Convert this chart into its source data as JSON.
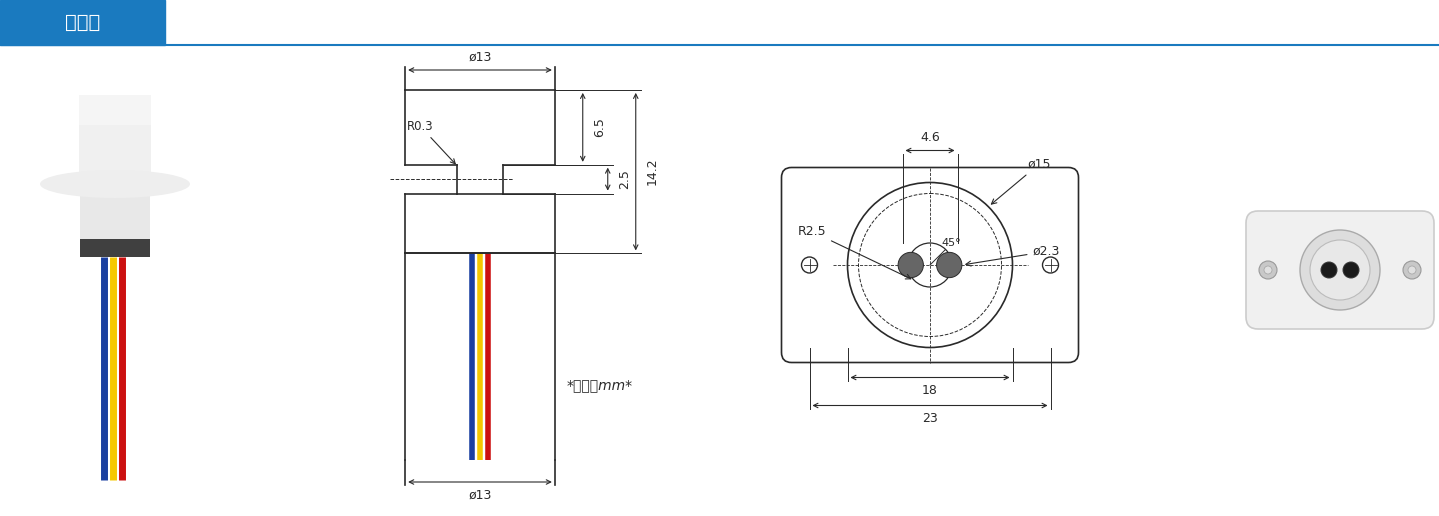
{
  "bg_color": "#ffffff",
  "header_color": "#1a7abf",
  "header_text": "尺寸图",
  "header_text_color": "#ffffff",
  "line_color": "#2a2a2a",
  "dim_color": "#2a2a2a",
  "wire_blue": "#1a3fa0",
  "wire_yellow": "#f5c800",
  "wire_red": "#cc1010",
  "unit_text": "*单位：mm*",
  "dims": {
    "phi13_top": "ø13",
    "phi13_bottom": "ø13",
    "dim_65": "6.5",
    "dim_25": "2.5",
    "dim_142": "14.2",
    "R03": "R0.3",
    "phi46": "4.6",
    "phi15": "ø15",
    "phi23": "ø2.3",
    "R25": "R2.5",
    "angle45": "45°",
    "dim_18": "18",
    "dim_23": "23"
  }
}
